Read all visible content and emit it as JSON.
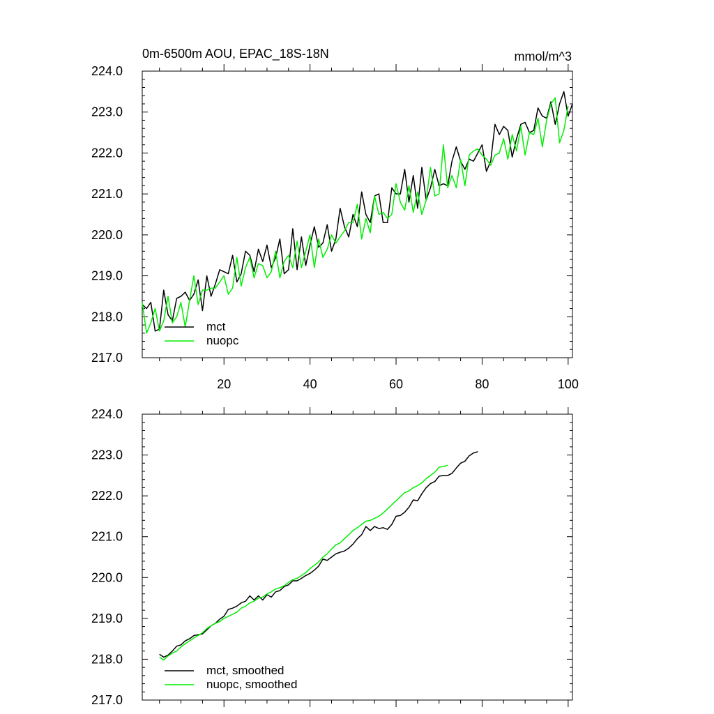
{
  "chart_data": [
    {
      "type": "line",
      "title": "0m-6500m AOU, EPAC_18S-18N",
      "units": "mmol/m^3",
      "ylim": [
        217.0,
        224.0
      ],
      "xlim": [
        1,
        101
      ],
      "yticks": [
        "217.0",
        "218.0",
        "219.0",
        "220.0",
        "221.0",
        "222.0",
        "223.0",
        "224.0"
      ],
      "xticks": [
        "20",
        "40",
        "60",
        "80",
        "100"
      ],
      "legend_position": "bottom-left",
      "series": [
        {
          "name": "mct",
          "color": "#000000",
          "x_start": 1,
          "values": [
            218.3,
            218.2,
            218.35,
            217.65,
            217.7,
            218.65,
            218.05,
            217.9,
            218.45,
            218.5,
            218.6,
            218.4,
            218.55,
            218.9,
            218.15,
            219.0,
            218.5,
            218.8,
            219.15,
            219.1,
            219.05,
            219.5,
            218.85,
            219.05,
            219.6,
            219.5,
            219.1,
            219.65,
            219.35,
            219.75,
            219.2,
            219.45,
            219.9,
            219.05,
            219.15,
            220.15,
            219.15,
            219.95,
            219.25,
            219.75,
            220.2,
            219.7,
            219.8,
            220.25,
            219.6,
            219.9,
            220.65,
            220.2,
            219.95,
            220.5,
            220.2,
            221.05,
            220.5,
            220.3,
            220.95,
            221.0,
            220.3,
            220.3,
            221.15,
            221.0,
            221.0,
            221.6,
            220.8,
            221.45,
            220.65,
            221.65,
            220.85,
            221.15,
            221.6,
            221.2,
            221.25,
            221.2,
            221.8,
            222.15,
            221.8,
            221.6,
            221.85,
            221.8,
            222.0,
            222.2,
            221.55,
            221.8,
            222.7,
            222.45,
            222.65,
            222.55,
            221.9,
            222.35,
            222.7,
            222.75,
            222.5,
            222.55,
            223.1,
            222.9,
            222.85,
            223.25,
            222.7,
            223.2,
            223.5,
            222.9,
            223.2
          ]
        },
        {
          "name": "nuopc",
          "color": "#00ee00",
          "x_start": 1,
          "values": [
            218.35,
            217.6,
            217.85,
            218.2,
            217.65,
            217.9,
            218.5,
            217.85,
            218.0,
            218.35,
            217.75,
            218.4,
            219.0,
            218.3,
            218.65,
            218.65,
            218.7,
            218.7,
            218.85,
            219.0,
            218.55,
            218.7,
            219.45,
            218.75,
            219.2,
            219.45,
            218.95,
            219.3,
            219.25,
            218.95,
            219.1,
            219.6,
            218.95,
            219.35,
            219.5,
            219.2,
            219.85,
            219.2,
            219.6,
            220.0,
            219.2,
            219.9,
            219.45,
            219.65,
            220.0,
            219.8,
            219.95,
            220.1,
            220.3,
            220.3,
            220.75,
            219.9,
            220.4,
            220.05,
            220.95,
            220.5,
            220.55,
            220.4,
            220.5,
            221.25,
            220.8,
            220.6,
            221.2,
            220.55,
            221.05,
            220.5,
            220.85,
            221.65,
            220.95,
            221.0,
            222.2,
            221.15,
            221.45,
            221.15,
            221.85,
            221.2,
            221.95,
            222.05,
            222.1,
            221.95,
            221.85,
            221.7,
            221.95,
            222.0,
            222.35,
            221.85,
            222.45,
            222.05,
            222.65,
            221.95,
            222.5,
            222.45,
            222.85,
            222.15,
            222.8,
            223.2,
            223.35,
            222.25,
            222.55,
            223.15
          ]
        }
      ]
    },
    {
      "type": "line",
      "title": "",
      "ylim": [
        217.0,
        224.0
      ],
      "xlim": [
        1,
        101
      ],
      "yticks": [
        "217.0",
        "218.0",
        "219.0",
        "220.0",
        "221.0",
        "222.0",
        "223.0",
        "224.0"
      ],
      "legend_position": "bottom-left",
      "series": [
        {
          "name": "mct, smoothed",
          "color": "#000000",
          "x_start": 5,
          "values": [
            218.12,
            218.05,
            218.1,
            218.2,
            218.32,
            218.35,
            218.45,
            218.5,
            218.58,
            218.6,
            218.62,
            218.72,
            218.82,
            218.88,
            218.98,
            219.05,
            219.22,
            219.25,
            219.3,
            219.38,
            219.42,
            219.55,
            219.45,
            219.55,
            219.45,
            219.58,
            219.52,
            219.65,
            219.68,
            219.78,
            219.82,
            219.92,
            219.92,
            219.98,
            220.05,
            220.1,
            220.18,
            220.28,
            220.45,
            220.42,
            220.5,
            220.58,
            220.62,
            220.65,
            220.72,
            220.82,
            220.95,
            221.05,
            221.25,
            221.15,
            221.25,
            221.2,
            221.22,
            221.18,
            221.3,
            221.5,
            221.52,
            221.6,
            221.72,
            221.9,
            221.88,
            222.05,
            222.2,
            222.3,
            222.35,
            222.48,
            222.5,
            222.5,
            222.55,
            222.68,
            222.8,
            222.85,
            222.98,
            223.05,
            223.08
          ]
        },
        {
          "name": "nuopc, smoothed",
          "color": "#00ee00",
          "x_start": 5,
          "values": [
            218.05,
            217.98,
            218.08,
            218.15,
            218.2,
            218.3,
            218.38,
            218.45,
            218.52,
            218.58,
            218.65,
            218.75,
            218.82,
            218.88,
            218.92,
            219.0,
            219.05,
            219.1,
            219.15,
            219.25,
            219.3,
            219.38,
            219.42,
            219.5,
            219.52,
            219.6,
            219.65,
            219.72,
            219.75,
            219.8,
            219.88,
            219.95,
            219.98,
            220.05,
            220.12,
            220.22,
            220.3,
            220.38,
            220.5,
            220.58,
            220.7,
            220.8,
            220.85,
            220.95,
            221.05,
            221.15,
            221.22,
            221.3,
            221.38,
            221.4,
            221.45,
            221.5,
            221.58,
            221.68,
            221.78,
            221.88,
            221.98,
            222.08,
            222.12,
            222.2,
            222.25,
            222.32,
            222.42,
            222.5,
            222.58,
            222.7,
            222.72,
            222.75
          ]
        }
      ]
    }
  ]
}
